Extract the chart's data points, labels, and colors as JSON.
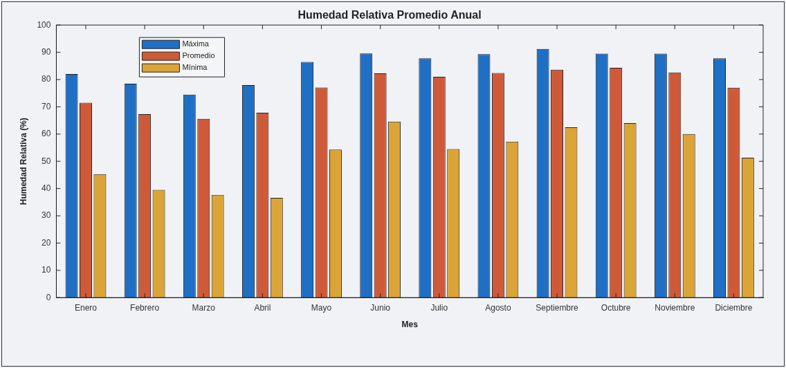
{
  "chart_data": {
    "type": "bar",
    "title": "Humedad Relativa Promedio Anual",
    "xlabel": "Mes",
    "ylabel": "Humedad Relativa (%)",
    "categories": [
      "Enero",
      "Febrero",
      "Marzo",
      "Abril",
      "Mayo",
      "Junio",
      "Julio",
      "Agosto",
      "Septiembre",
      "Octubre",
      "Noviembre",
      "Diciembre"
    ],
    "series": [
      {
        "name": "Máxima",
        "color": "#1f6fc4",
        "values": [
          82,
          78.5,
          74.5,
          78,
          86.5,
          89.6,
          87.8,
          89.3,
          91.2,
          89.5,
          89.5,
          87.8
        ]
      },
      {
        "name": "Promedio",
        "color": "#cf5a3a",
        "values": [
          71.5,
          67.3,
          65.6,
          67.8,
          77.1,
          82.3,
          81,
          82.4,
          83.6,
          84.3,
          82.6,
          77
        ]
      },
      {
        "name": "Mínima",
        "color": "#dba437",
        "values": [
          45.3,
          39.5,
          37.7,
          36.6,
          54.3,
          64.6,
          54.5,
          57.2,
          62.5,
          64,
          60,
          51.3
        ]
      }
    ],
    "ylim": [
      0,
      100
    ],
    "yticks": [
      0,
      10,
      20,
      30,
      40,
      50,
      60,
      70,
      80,
      90,
      100
    ],
    "grid": false,
    "legend": "top left"
  }
}
